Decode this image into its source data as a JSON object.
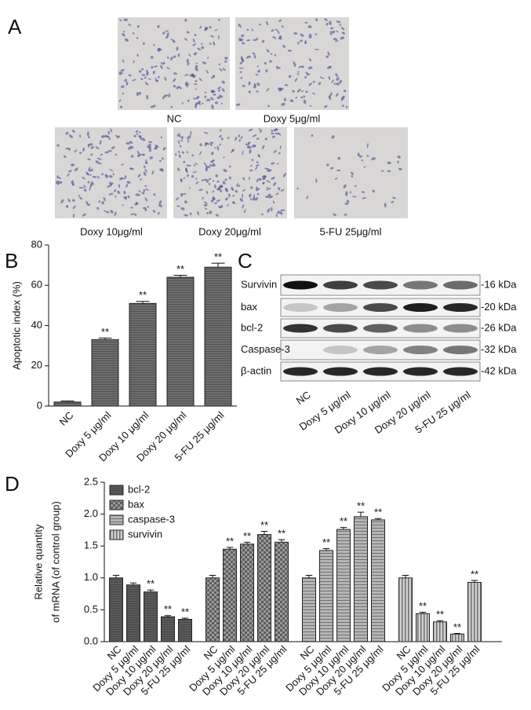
{
  "panel_a": {
    "label": "A",
    "captions": [
      "NC",
      "Doxy 5μg/ml",
      "Doxy 10μg/ml",
      "Doxy 20μg/ml",
      "5-FU 25μg/ml"
    ]
  },
  "panel_c": {
    "label": "C",
    "rows": [
      {
        "protein": "Survivin",
        "size": "-16 kDa"
      },
      {
        "protein": "bax",
        "size": "-20 kDa"
      },
      {
        "protein": "bcl-2",
        "size": "-26 kDa"
      },
      {
        "protein": "Caspase-3",
        "size": "-32 kDa"
      },
      {
        "protein": "β-actin",
        "size": "-42 kDa"
      }
    ],
    "lanes": [
      "NC",
      "Doxy 5 μg/ml",
      "Doxy 10 μg/ml",
      "Doxy 20 μg/ml",
      "5-FU 25 μg/ml"
    ]
  },
  "chart_data": [
    {
      "type": "bar",
      "panel_label": "B",
      "ylabel": "Apoptotic index (%)",
      "categories": [
        "NC",
        "Doxy 5 μg/ml",
        "Doxy 10 μg/ml",
        "Doxy 20 μg/ml",
        "5-FU 25 μg/ml"
      ],
      "values": [
        2,
        33,
        51,
        64,
        69
      ],
      "errors": [
        0.5,
        0.8,
        1,
        1,
        2
      ],
      "significance": [
        null,
        "**",
        "**",
        "**",
        "**"
      ],
      "color": "#6e6e6e",
      "ylim": [
        0,
        80
      ],
      "yticks": [
        0,
        20,
        40,
        60,
        80
      ]
    },
    {
      "type": "bar",
      "panel_label": "D",
      "ylabel": [
        "Relative quantity",
        "of mRNA (of control group)"
      ],
      "categories": [
        "NC",
        "Doxy 5 μg/ml",
        "Doxy 10 μg/ml",
        "Doxy 20 μg/ml",
        "5-FU 25 μg/ml"
      ],
      "series": [
        {
          "name": "bcl-2",
          "color": "#5a5a5a",
          "values": [
            1.0,
            0.89,
            0.78,
            0.39,
            0.35
          ],
          "errors": [
            0.04,
            0.03,
            0.03,
            0.02,
            0.02
          ],
          "significance": [
            null,
            null,
            "**",
            "**",
            "**"
          ]
        },
        {
          "name": "bax",
          "color": "#9a9a9a",
          "values": [
            1.0,
            1.45,
            1.53,
            1.68,
            1.56
          ],
          "errors": [
            0.04,
            0.03,
            0.03,
            0.05,
            0.04
          ],
          "significance": [
            null,
            "**",
            "**",
            "**",
            "**"
          ]
        },
        {
          "name": "caspase-3",
          "color": "#b5b5b5",
          "values": [
            1.0,
            1.43,
            1.76,
            1.96,
            1.91
          ],
          "errors": [
            0.04,
            0.03,
            0.03,
            0.07,
            0.02
          ],
          "significance": [
            null,
            "**",
            "**",
            "**",
            "**"
          ]
        },
        {
          "name": "survivin",
          "color": "#d0d0d0",
          "values": [
            1.0,
            0.44,
            0.31,
            0.12,
            0.93
          ],
          "errors": [
            0.04,
            0.02,
            0.02,
            0.01,
            0.03
          ],
          "significance": [
            null,
            "**",
            "**",
            "**",
            "**"
          ]
        }
      ],
      "ylim": [
        0,
        2.5
      ],
      "yticks": [
        {
          "value": 0,
          "label": "0.0"
        },
        0.5,
        {
          "value": 1,
          "label": "1.0"
        },
        1.5,
        {
          "value": 2,
          "label": "2.0"
        },
        2.5
      ],
      "legend": "upper left"
    }
  ]
}
